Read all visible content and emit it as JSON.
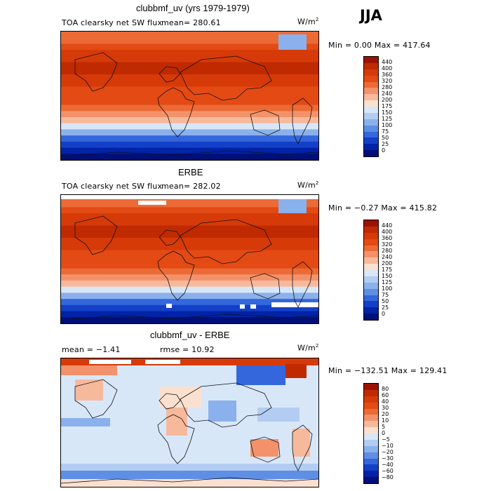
{
  "season": "JJA",
  "units": "W/m",
  "units_sup": "2",
  "panels": [
    {
      "title": "clubbmf_uv (yrs 1979-1979)",
      "field": "TOA clearsky net SW flux",
      "stat1": "mean= 280.61",
      "stat2": "",
      "minmax": "Min =    0.00 Max = 417.64"
    },
    {
      "title": "ERBE",
      "field": "TOA clearsky net SW flux",
      "stat1": "mean= 282.02",
      "stat2": "",
      "minmax": "Min =  −0.27 Max = 415.82"
    },
    {
      "title": "clubbmf_uv - ERBE",
      "field": "",
      "stat1": "mean =   −1.41",
      "stat2": "rmse =   10.92",
      "minmax": "Min = −132.51 Max = 129.41"
    }
  ],
  "chart_data": [
    {
      "type": "heatmap",
      "title": "clubbmf_uv (yrs 1979-1979)",
      "field": "TOA clearsky net SW flux",
      "mean": 280.61,
      "min": 0.0,
      "max": 417.64,
      "levels": [
        "440",
        "400",
        "360",
        "320",
        "280",
        "240",
        "200",
        "175",
        "150",
        "125",
        "100",
        "75",
        "50",
        "25",
        "0"
      ],
      "colors": [
        "#9b1200",
        "#c02a00",
        "#d63a08",
        "#e34a14",
        "#ec6a36",
        "#f3926a",
        "#f7b99c",
        "#fbe0d0",
        "#d8e7f8",
        "#b3cdf2",
        "#8bb1ec",
        "#5e8fe4",
        "#3467dc",
        "#1440c8",
        "#0023a8",
        "#000f78"
      ]
    },
    {
      "type": "heatmap",
      "title": "ERBE",
      "field": "TOA clearsky net SW flux",
      "mean": 282.02,
      "min": -0.27,
      "max": 415.82,
      "levels": [
        "440",
        "400",
        "360",
        "320",
        "280",
        "240",
        "200",
        "175",
        "150",
        "125",
        "100",
        "75",
        "50",
        "25",
        "0"
      ],
      "colors": [
        "#9b1200",
        "#c02a00",
        "#d63a08",
        "#e34a14",
        "#ec6a36",
        "#f3926a",
        "#f7b99c",
        "#fbe0d0",
        "#d8e7f8",
        "#b3cdf2",
        "#8bb1ec",
        "#5e8fe4",
        "#3467dc",
        "#1440c8",
        "#0023a8",
        "#000f78"
      ]
    },
    {
      "type": "heatmap",
      "title": "clubbmf_uv - ERBE",
      "mean": -1.41,
      "rmse": 10.92,
      "min": -132.51,
      "max": 129.41,
      "levels": [
        "80",
        "60",
        "40",
        "30",
        "20",
        "10",
        "5",
        "0",
        "−5",
        "−10",
        "−20",
        "−30",
        "−40",
        "−60",
        "−80"
      ],
      "colors": [
        "#9b1200",
        "#c02a00",
        "#d63a08",
        "#e34a14",
        "#ec6a36",
        "#f3926a",
        "#f7b99c",
        "#fbe0d0",
        "#d8e7f8",
        "#b3cdf2",
        "#8bb1ec",
        "#5e8fe4",
        "#3467dc",
        "#1440c8",
        "#0023a8",
        "#000f78"
      ]
    }
  ]
}
